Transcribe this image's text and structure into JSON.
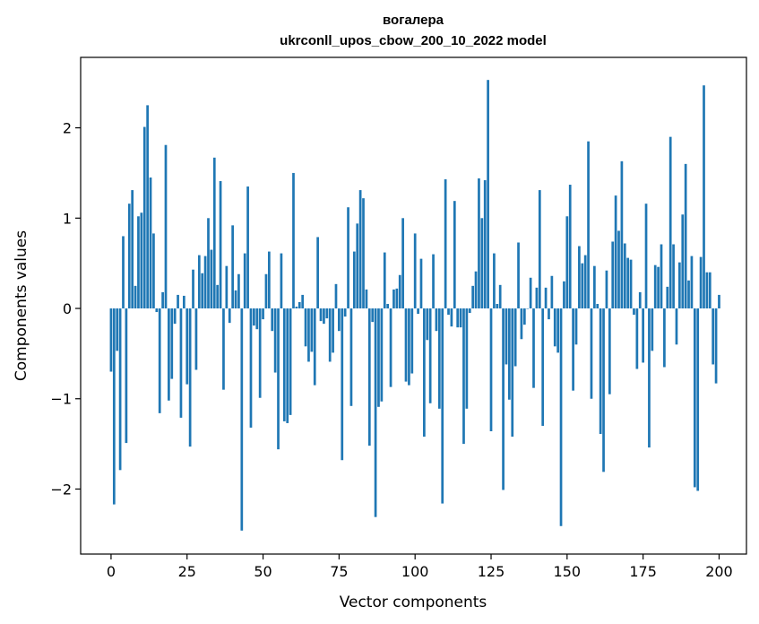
{
  "chart_data": {
    "type": "bar",
    "title_line1": "вогалера",
    "title_line2": "ukrconll_upos_cbow_200_10_2022 model",
    "xlabel": "Vector components",
    "ylabel": "Components values",
    "xlim": [
      -10,
      209
    ],
    "ylim": [
      -2.72,
      2.78
    ],
    "xticks": [
      0,
      25,
      50,
      75,
      100,
      125,
      150,
      175,
      200
    ],
    "xtick_labels": [
      "0",
      "25",
      "50",
      "75",
      "100",
      "125",
      "150",
      "175",
      "200"
    ],
    "yticks": [
      -2,
      -1,
      0,
      1,
      2
    ],
    "ytick_labels": [
      "−2",
      "−1",
      "0",
      "1",
      "2"
    ],
    "grid": false,
    "bar_color": "#1f77b4",
    "values": [
      -0.7,
      -2.17,
      -0.47,
      -1.79,
      0.8,
      -1.49,
      1.16,
      1.31,
      0.25,
      1.02,
      1.06,
      2.01,
      2.25,
      1.45,
      0.83,
      -0.04,
      -1.16,
      0.18,
      1.81,
      -1.02,
      -0.78,
      -0.17,
      0.15,
      -1.21,
      0.14,
      -0.84,
      -1.53,
      0.43,
      -0.68,
      0.59,
      0.39,
      0.58,
      1.0,
      0.65,
      1.67,
      0.26,
      1.41,
      -0.9,
      0.47,
      -0.16,
      0.92,
      0.2,
      0.38,
      -2.46,
      0.61,
      1.35,
      -1.32,
      -0.19,
      -0.23,
      -0.99,
      -0.12,
      0.38,
      0.63,
      -0.25,
      -0.71,
      -1.56,
      0.61,
      -1.25,
      -1.27,
      -1.18,
      1.5,
      0.02,
      0.07,
      0.15,
      -0.42,
      -0.59,
      -0.48,
      -0.85,
      0.79,
      -0.14,
      -0.17,
      -0.11,
      -0.59,
      -0.49,
      0.27,
      -0.25,
      -1.68,
      -0.09,
      1.12,
      -1.08,
      0.63,
      0.94,
      1.31,
      1.22,
      0.21,
      -1.52,
      -0.15,
      -2.31,
      -1.09,
      -1.03,
      0.62,
      0.05,
      -0.87,
      0.21,
      0.22,
      0.37,
      1.0,
      -0.81,
      -0.85,
      -0.72,
      0.83,
      -0.06,
      0.55,
      -1.42,
      -0.35,
      -1.05,
      0.6,
      -0.25,
      -1.11,
      -2.16,
      1.43,
      -0.07,
      -0.2,
      1.19,
      -0.21,
      -0.21,
      -1.5,
      -1.11,
      -0.05,
      0.25,
      0.41,
      1.44,
      1.0,
      1.42,
      2.53,
      -1.36,
      0.61,
      0.05,
      0.26,
      -2.01,
      -0.62,
      -1.01,
      -1.42,
      -0.64,
      0.73,
      -0.34,
      -0.18,
      0.0,
      0.34,
      -0.88,
      0.23,
      1.31,
      -1.3,
      0.23,
      -0.12,
      0.36,
      -0.42,
      -0.49,
      -2.41,
      0.3,
      1.02,
      1.37,
      -0.91,
      -0.4,
      0.69,
      0.5,
      0.59,
      1.85,
      -1.0,
      0.47,
      0.05,
      -1.39,
      -1.81,
      0.42,
      -0.95,
      0.74,
      1.25,
      0.86,
      1.63,
      0.72,
      0.56,
      0.54,
      -0.07,
      -0.67,
      0.18,
      -0.6,
      1.16,
      -1.54,
      -0.47,
      0.48,
      0.46,
      0.71,
      -0.65,
      0.24,
      1.9,
      0.71,
      -0.4,
      0.51,
      1.04,
      1.6,
      0.31,
      0.58,
      -1.98,
      -2.02,
      0.57,
      2.47,
      0.4,
      0.4,
      -0.62,
      -0.83,
      0.15
    ]
  }
}
